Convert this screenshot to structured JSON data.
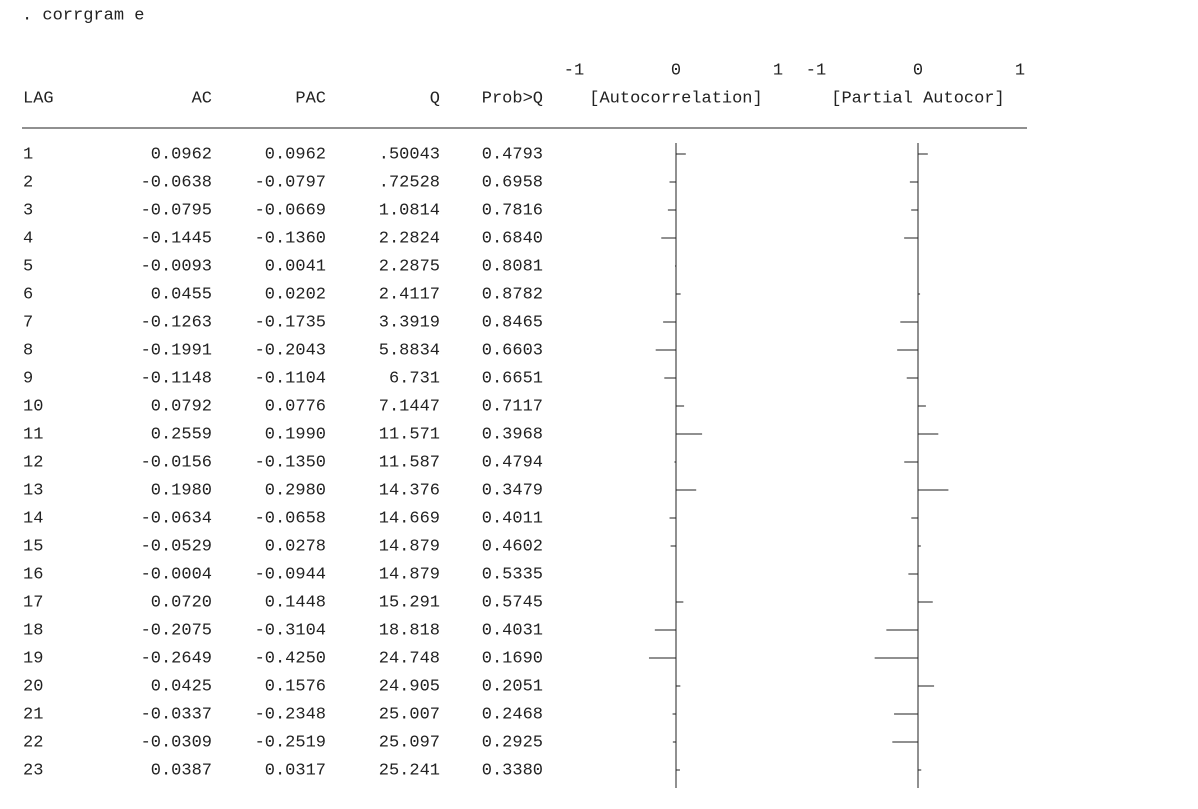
{
  "command": ". corrgram e",
  "columns": [
    "LAG",
    "AC",
    "PAC",
    "Q",
    "Prob>Q",
    "[Autocorrelation]",
    "[Partial Autocor]"
  ],
  "scale_ticks": [
    -1,
    0,
    1
  ],
  "table": {
    "rows": [
      [
        "1",
        "0.0962",
        "0.0962",
        ".50043",
        "0.4793"
      ],
      [
        "2",
        "-0.0638",
        "-0.0797",
        ".72528",
        "0.6958"
      ],
      [
        "3",
        "-0.0795",
        "-0.0669",
        "1.0814",
        "0.7816"
      ],
      [
        "4",
        "-0.1445",
        "-0.1360",
        "2.2824",
        "0.6840"
      ],
      [
        "5",
        "-0.0093",
        "0.0041",
        "2.2875",
        "0.8081"
      ],
      [
        "6",
        "0.0455",
        "0.0202",
        "2.4117",
        "0.8782"
      ],
      [
        "7",
        "-0.1263",
        "-0.1735",
        "3.3919",
        "0.8465"
      ],
      [
        "8",
        "-0.1991",
        "-0.2043",
        "5.8834",
        "0.6603"
      ],
      [
        "9",
        "-0.1148",
        "-0.1104",
        "6.731",
        "0.6651"
      ],
      [
        "10",
        "0.0792",
        "0.0776",
        "7.1447",
        "0.7117"
      ],
      [
        "11",
        "0.2559",
        "0.1990",
        "11.571",
        "0.3968"
      ],
      [
        "12",
        "-0.0156",
        "-0.1350",
        "11.587",
        "0.4794"
      ],
      [
        "13",
        "0.1980",
        "0.2980",
        "14.376",
        "0.3479"
      ],
      [
        "14",
        "-0.0634",
        "-0.0658",
        "14.669",
        "0.4011"
      ],
      [
        "15",
        "-0.0529",
        "0.0278",
        "14.879",
        "0.4602"
      ],
      [
        "16",
        "-0.0004",
        "-0.0944",
        "14.879",
        "0.5335"
      ],
      [
        "17",
        "0.0720",
        "0.1448",
        "15.291",
        "0.5745"
      ],
      [
        "18",
        "-0.2075",
        "-0.3104",
        "18.818",
        "0.4031"
      ],
      [
        "19",
        "-0.2649",
        "-0.4250",
        "24.748",
        "0.1690"
      ],
      [
        "20",
        "0.0425",
        "0.1576",
        "24.905",
        "0.2051"
      ],
      [
        "21",
        "-0.0337",
        "-0.2348",
        "25.007",
        "0.2468"
      ],
      [
        "22",
        "-0.0309",
        "-0.2519",
        "25.097",
        "0.2925"
      ],
      [
        "23",
        "0.0387",
        "0.0317",
        "25.241",
        "0.3380"
      ]
    ]
  }
}
